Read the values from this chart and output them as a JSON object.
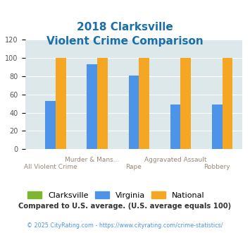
{
  "title_line1": "2018 Clarksville",
  "title_line2": "Violent Crime Comparison",
  "categories": [
    "All Violent Crime",
    "Murder & Mans...",
    "Rape",
    "Aggravated Assault",
    "Robbery"
  ],
  "xtick_labels_row1": [
    "",
    "Murder & Mans...",
    "",
    "Aggravated Assault",
    ""
  ],
  "xtick_labels_row2": [
    "All Violent Crime",
    "",
    "Rape",
    "",
    "Robbery"
  ],
  "clarksville_values": [
    0,
    0,
    0,
    0,
    0
  ],
  "virginia_values": [
    53,
    93,
    81,
    49,
    49
  ],
  "national_values": [
    100,
    100,
    100,
    100,
    100
  ],
  "clarksville_color": "#7db731",
  "virginia_color": "#4d94e8",
  "national_color": "#f5a623",
  "ylim": [
    0,
    120
  ],
  "yticks": [
    0,
    20,
    40,
    60,
    80,
    100,
    120
  ],
  "background_color": "#dce8ea",
  "title_color": "#1a6fa8",
  "xlabel_color": "#9b8878",
  "legend_labels": [
    "Clarksville",
    "Virginia",
    "National"
  ],
  "footer_text": "Compared to U.S. average. (U.S. average equals 100)",
  "copyright_text": "© 2025 CityRating.com - https://www.cityrating.com/crime-statistics/",
  "footer_color": "#333333",
  "copyright_color": "#4d94e8",
  "bar_width": 0.25
}
